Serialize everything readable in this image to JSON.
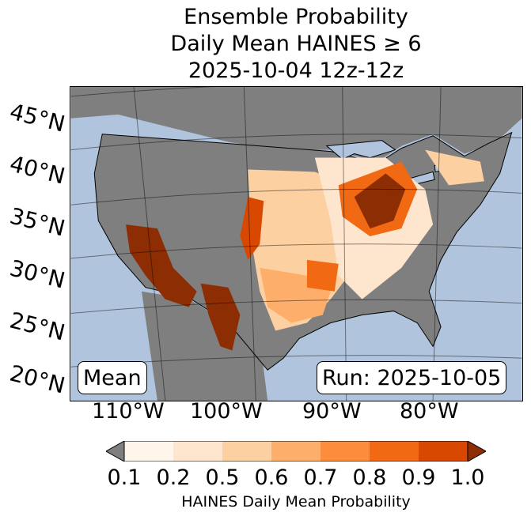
{
  "title": {
    "line1": "Ensemble Probability",
    "line2": "Daily Mean HAINES ≥ 6",
    "line3": "2025-10-04 12z-12z"
  },
  "map": {
    "lat_labels": [
      "45°N",
      "40°N",
      "35°N",
      "30°N",
      "25°N",
      "20°N"
    ],
    "lon_labels": [
      "110°W",
      "100°W",
      "90°W",
      "80°W"
    ],
    "land_color": "#7f7f7f",
    "water_color": "#b0c4de",
    "stat_box": "Mean",
    "run_box": "Run: 2025-10-05"
  },
  "colorbar": {
    "ticks": [
      "0.1",
      "0.2",
      "0.5",
      "0.6",
      "0.7",
      "0.8",
      "0.9",
      "1.0"
    ],
    "colors": [
      "#fff5eb",
      "#fee6ce",
      "#fdd0a2",
      "#fdae6b",
      "#fd8d3c",
      "#f16913",
      "#d94801",
      "#8c2d04"
    ],
    "under_color": "#7f7f7f",
    "label": "HAINES Daily Mean Probability"
  }
}
